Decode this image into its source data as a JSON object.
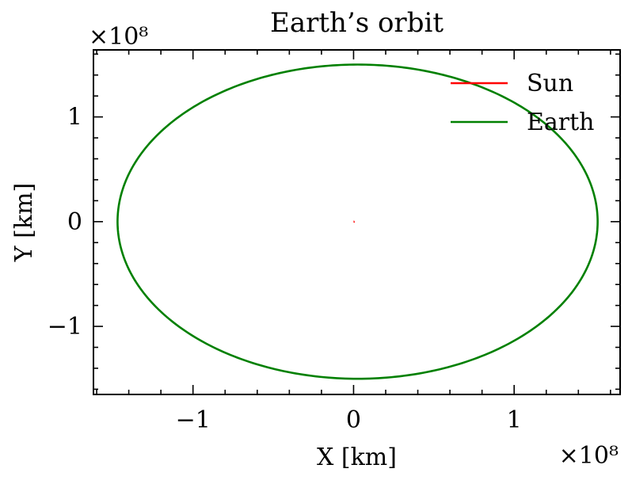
{
  "chart_data": {
    "type": "line",
    "title": "Earth’s orbit",
    "xlabel": "X [km]",
    "ylabel": "Y [km]",
    "x_multiplier": "×10⁸",
    "y_multiplier": "×10⁸",
    "xlim": [
      -162000000.0,
      166000000.0
    ],
    "ylim": [
      -165000000.0,
      164000000.0
    ],
    "x_ticks": [
      -100000000.0,
      0,
      100000000.0
    ],
    "x_tick_labels": [
      "−1",
      "0",
      "1"
    ],
    "y_ticks": [
      -100000000.0,
      0,
      100000000.0
    ],
    "y_tick_labels": [
      "−1",
      "0",
      "1"
    ],
    "grid": false,
    "legend_position": "top-right",
    "series": [
      {
        "name": "Sun",
        "color": "#ff0000",
        "points": [
          [
            0,
            0
          ],
          [
            300000,
            0
          ],
          [
            600000,
            200000
          ]
        ]
      },
      {
        "name": "Earth",
        "color": "#008000",
        "orbit": {
          "center_x": 2500000,
          "center_y": 0,
          "semi_major_x": 149500000.0,
          "semi_minor_y": 150000000.0
        }
      }
    ],
    "legend": [
      {
        "label": "Sun",
        "color": "#ff0000"
      },
      {
        "label": "Earth",
        "color": "#008000"
      }
    ]
  }
}
